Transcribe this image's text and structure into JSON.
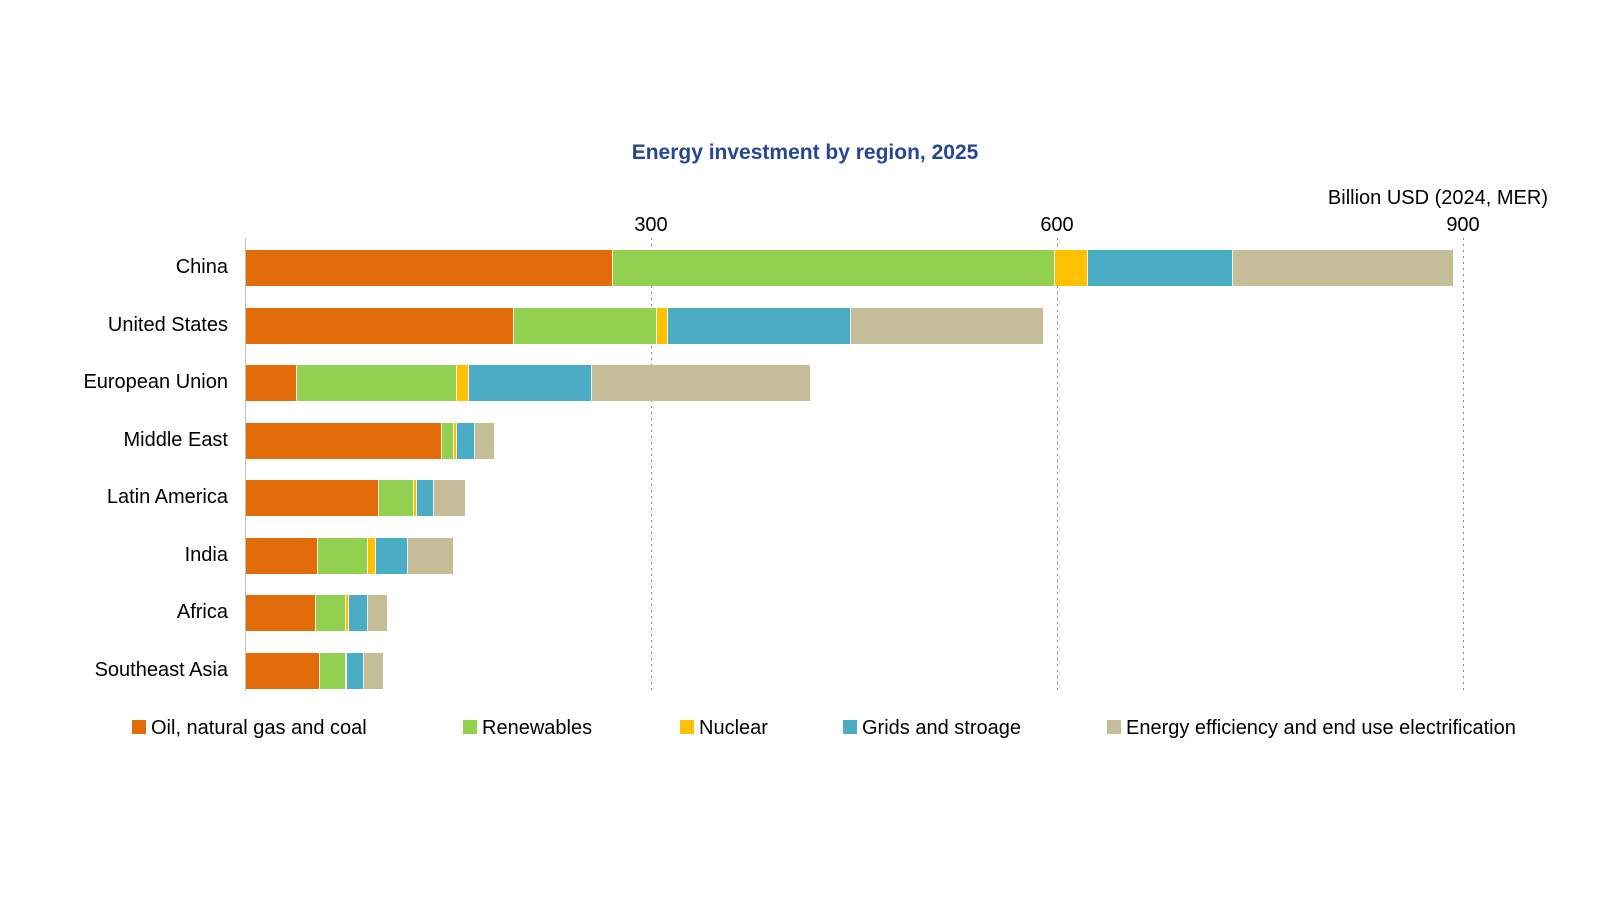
{
  "title": "Energy investment by region, 2025",
  "axis_label": "Billion USD (2024, MER)",
  "chart_data": {
    "type": "bar",
    "orientation": "horizontal-stacked",
    "title": "Energy investment by region, 2025",
    "xlabel": "Billion USD (2024, MER)",
    "ylabel": "",
    "categories": [
      "China",
      "United States",
      "European Union",
      "Middle East",
      "Latin America",
      "India",
      "Africa",
      "Southeast Asia"
    ],
    "series": [
      {
        "name": "Oil, natural gas and coal",
        "color": "#e26b0a",
        "values": [
          271,
          198,
          38,
          145,
          98,
          53,
          52,
          55
        ]
      },
      {
        "name": "Renewables",
        "color": "#92d050",
        "values": [
          327,
          106,
          118,
          9,
          26,
          37,
          22,
          19
        ]
      },
      {
        "name": "Nuclear",
        "color": "#ffc000",
        "values": [
          24,
          8,
          9,
          2,
          2,
          6,
          2,
          1
        ]
      },
      {
        "name": "Grids and stroage",
        "color": "#4bacc6",
        "values": [
          107,
          135,
          91,
          13,
          13,
          24,
          14,
          12
        ]
      },
      {
        "name": "Energy efficiency and end use electrification",
        "color": "#c4bd97",
        "values": [
          163,
          142,
          161,
          14,
          23,
          33,
          14,
          14
        ]
      }
    ],
    "totals": [
      892,
      589,
      417,
      183,
      162,
      153,
      104,
      101
    ],
    "x_ticks": [
      300,
      600,
      900
    ],
    "xlim": [
      0,
      1000
    ],
    "grid": "vertical-dotted",
    "legend_position": "bottom"
  },
  "colors": {
    "title": "#274691",
    "axis_line": "#bfbfbf",
    "gridline": "#8c8c8c",
    "text": "#000000",
    "background": "#ffffff"
  }
}
